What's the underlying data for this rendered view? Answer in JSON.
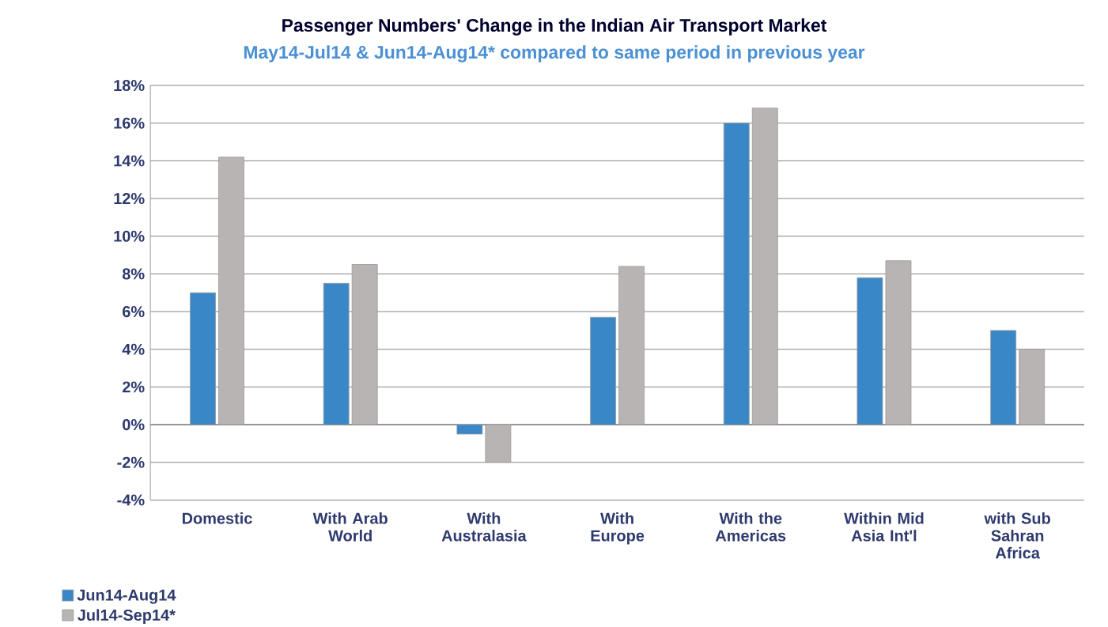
{
  "chart_data": {
    "type": "bar",
    "title": "Passenger Numbers' Change in the Indian Air Transport Market",
    "subtitle": "May14-Jul14 & Jun14-Aug14* compared to same period in previous year",
    "categories": [
      "Domestic",
      "With Arab World",
      "With Australasia",
      "With Europe",
      "With the Americas",
      "Within Mid Asia Int'l",
      "with Sub Sahran Africa"
    ],
    "series": [
      {
        "name": "Jun14-Aug14",
        "color": "#3a87c8",
        "values": [
          7,
          7.5,
          -0.5,
          5.7,
          16,
          7.8,
          5
        ]
      },
      {
        "name": "Jul14-Sep14*",
        "color": "#b8b4b4",
        "values": [
          14.2,
          8.5,
          -2,
          8.4,
          16.8,
          8.7,
          4
        ]
      }
    ],
    "ylim": [
      -4,
      18
    ],
    "yticks": [
      {
        "value": -4,
        "label": "-4%"
      },
      {
        "value": -2,
        "label": "-2%"
      },
      {
        "value": 0,
        "label": "0%"
      },
      {
        "value": 2,
        "label": "2%"
      },
      {
        "value": 4,
        "label": "4%"
      },
      {
        "value": 6,
        "label": "6%"
      },
      {
        "value": 8,
        "label": "8%"
      },
      {
        "value": 10,
        "label": "10%"
      },
      {
        "value": 12,
        "label": "12%"
      },
      {
        "value": 14,
        "label": "14%"
      },
      {
        "value": 16,
        "label": "16%"
      },
      {
        "value": 18,
        "label": "18%"
      }
    ],
    "grid": "y",
    "legend": "bottom left"
  }
}
